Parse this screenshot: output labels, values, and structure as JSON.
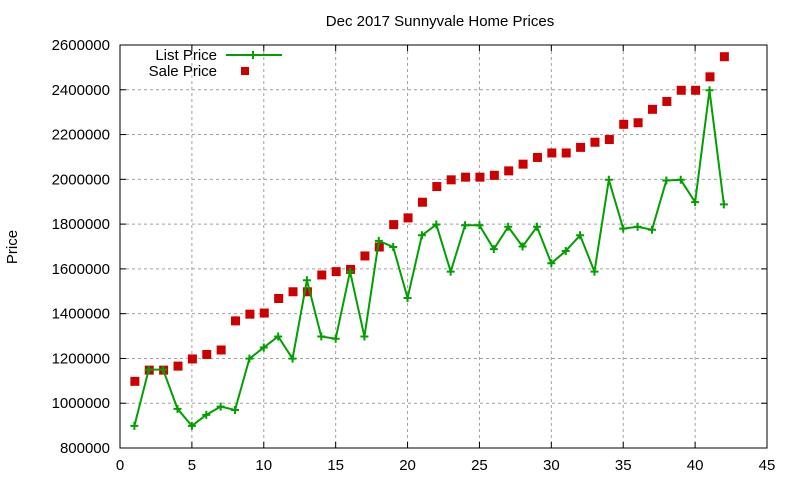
{
  "chart_data": {
    "type": "line",
    "title": "Dec 2017 Sunnyvale Home Prices",
    "xlabel": "",
    "ylabel": "Price",
    "xlim": [
      0,
      45
    ],
    "ylim": [
      800000,
      2600000
    ],
    "xticks": [
      0,
      5,
      10,
      15,
      20,
      25,
      30,
      35,
      40,
      45
    ],
    "yticks": [
      800000,
      1000000,
      1200000,
      1400000,
      1600000,
      1800000,
      2000000,
      2200000,
      2400000,
      2600000
    ],
    "grid": true,
    "legend_position": "top-left",
    "x": [
      1,
      2,
      3,
      4,
      5,
      6,
      7,
      8,
      9,
      10,
      11,
      12,
      13,
      14,
      15,
      16,
      17,
      18,
      19,
      20,
      21,
      22,
      23,
      24,
      25,
      26,
      27,
      28,
      29,
      30,
      31,
      32,
      33,
      34,
      35,
      36,
      37,
      38,
      39,
      40,
      41,
      42
    ],
    "series": [
      {
        "name": "List Price",
        "style": "linespoints",
        "color": "#00a000",
        "values": [
          899000,
          1150000,
          1150000,
          975000,
          899000,
          948000,
          985000,
          970000,
          1199000,
          1249000,
          1298000,
          1199000,
          1549000,
          1298000,
          1288000,
          1588000,
          1298000,
          1725000,
          1698000,
          1470000,
          1750000,
          1798000,
          1588000,
          1795000,
          1795000,
          1688000,
          1788000,
          1700000,
          1788000,
          1625000,
          1680000,
          1750000,
          1588000,
          1998000,
          1780000,
          1788000,
          1775000,
          1995000,
          1998000,
          1898000,
          2398000,
          1888000
        ]
      },
      {
        "name": "Sale Price",
        "style": "points",
        "color": "#cc0000",
        "values": [
          1100000,
          1150000,
          1150000,
          1168000,
          1200000,
          1220000,
          1240000,
          1370000,
          1400000,
          1405000,
          1470000,
          1500000,
          1500000,
          1575000,
          1590000,
          1600000,
          1660000,
          1700000,
          1800000,
          1830000,
          1900000,
          1970000,
          2000000,
          2012000,
          2012000,
          2020000,
          2040000,
          2070000,
          2100000,
          2120000,
          2120000,
          2145000,
          2168000,
          2180000,
          2248000,
          2255000,
          2315000,
          2350000,
          2400000,
          2400000,
          2460000,
          2550000
        ]
      }
    ]
  }
}
